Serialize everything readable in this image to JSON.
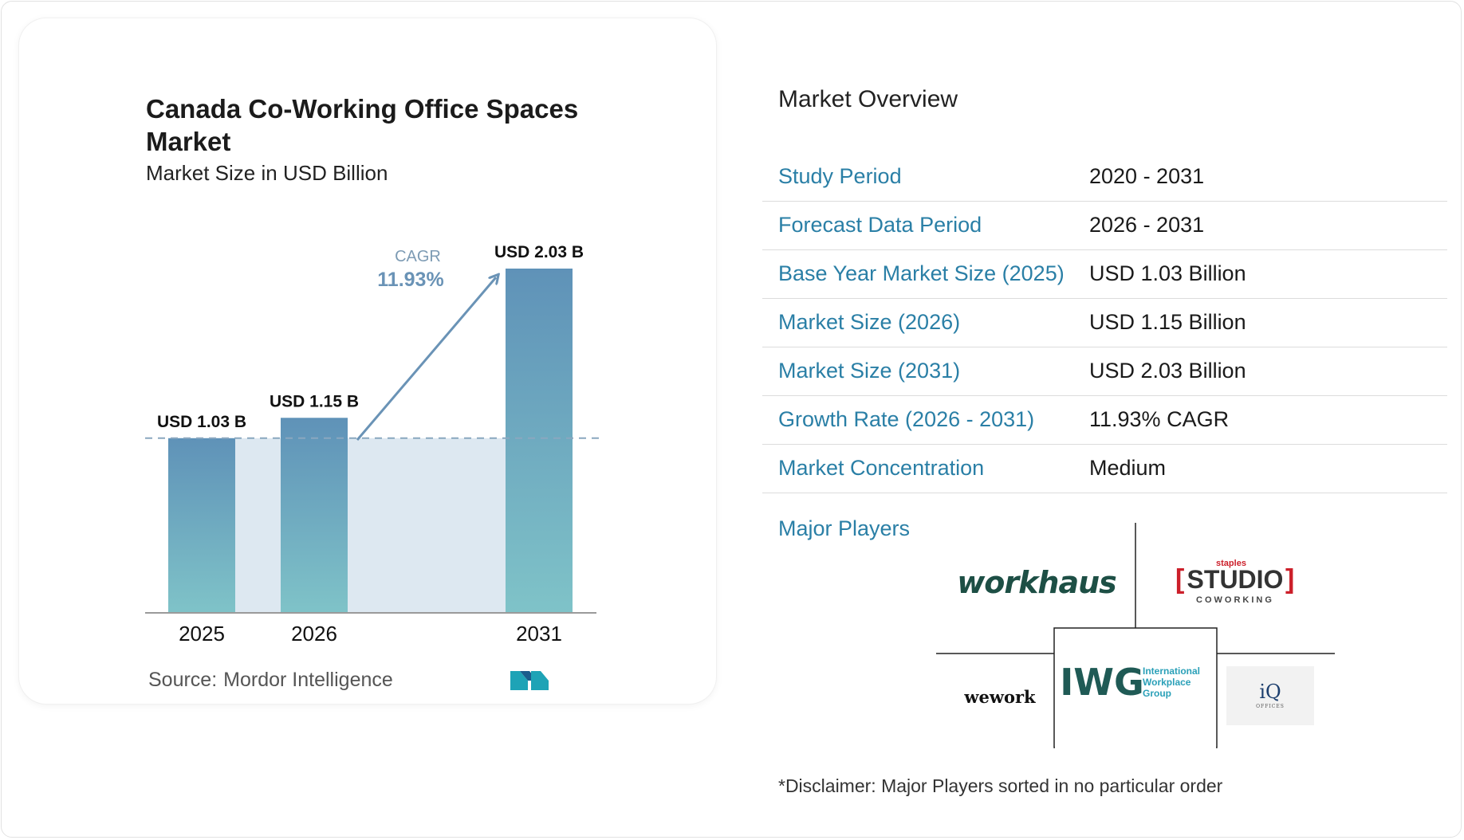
{
  "chart_data": {
    "type": "bar",
    "title": "Canada Co-Working Office Spaces Market",
    "subtitle": "Market Size in USD Billion",
    "categories": [
      "2025",
      "2026",
      "2031"
    ],
    "values": [
      1.03,
      1.15,
      2.03
    ],
    "data_labels": [
      "USD 1.03 B",
      "USD 1.15 B",
      "USD 2.03 B"
    ],
    "cagr_label": "CAGR",
    "cagr_value": "11.93%",
    "ylim": [
      0,
      2.03
    ],
    "grid": false,
    "colors": {
      "bar_top": "#5f92b8",
      "bar_bottom": "#7fc3c8",
      "band": "#dde8f1",
      "arrow": "#6a93b6"
    }
  },
  "source": {
    "label": "Source:",
    "name": "Mordor Intelligence"
  },
  "overview": {
    "title": "Market Overview",
    "rows": [
      {
        "label": "Study Period",
        "value": "2020 - 2031"
      },
      {
        "label": "Forecast Data Period",
        "value": "2026 - 2031"
      },
      {
        "label": "Base Year Market Size (2025)",
        "value": "USD 1.03 Billion"
      },
      {
        "label": "Market Size (2026)",
        "value": "USD 1.15 Billion"
      },
      {
        "label": "Market Size (2031)",
        "value": "USD 2.03 Billion"
      },
      {
        "label": "Growth Rate (2026 - 2031)",
        "value": "11.93% CAGR"
      },
      {
        "label": "Market Concentration",
        "value": "Medium"
      }
    ]
  },
  "players": {
    "label": "Major Players",
    "logos": {
      "workhaus": "workhaus",
      "staples_small": "staples",
      "studio": "STUDIO",
      "coworking": "COWORKING",
      "wework": "wework",
      "iwg_mark": "IWG",
      "iwg_line1": "International",
      "iwg_line2": "Workplace",
      "iwg_line3": "Group",
      "iq": "iQ",
      "iq_sub": "OFFICES"
    }
  },
  "disclaimer": "*Disclaimer: Major Players sorted in no particular order",
  "colors": {
    "accent": "#2a7fa6"
  }
}
